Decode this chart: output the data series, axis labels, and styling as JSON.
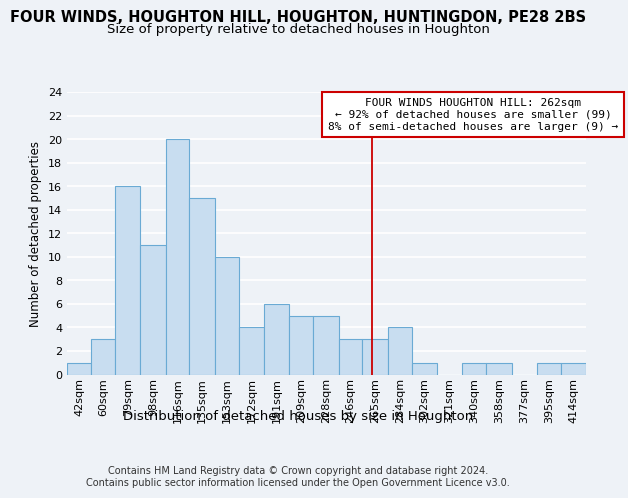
{
  "title": "FOUR WINDS, HOUGHTON HILL, HOUGHTON, HUNTINGDON, PE28 2BS",
  "subtitle": "Size of property relative to detached houses in Houghton",
  "xlabel": "Distribution of detached houses by size in Houghton",
  "ylabel": "Number of detached properties",
  "footer_line1": "Contains HM Land Registry data © Crown copyright and database right 2024.",
  "footer_line2": "Contains public sector information licensed under the Open Government Licence v3.0.",
  "bin_labels": [
    "42sqm",
    "60sqm",
    "79sqm",
    "98sqm",
    "116sqm",
    "135sqm",
    "153sqm",
    "172sqm",
    "191sqm",
    "209sqm",
    "228sqm",
    "246sqm",
    "265sqm",
    "284sqm",
    "302sqm",
    "321sqm",
    "340sqm",
    "358sqm",
    "377sqm",
    "395sqm",
    "414sqm"
  ],
  "bin_edges": [
    33,
    51,
    69,
    88,
    107,
    125,
    144,
    162,
    181,
    200,
    218,
    237,
    255,
    274,
    292,
    311,
    330,
    348,
    367,
    386,
    404,
    423
  ],
  "values": [
    1,
    3,
    16,
    11,
    20,
    15,
    10,
    4,
    6,
    5,
    5,
    3,
    3,
    4,
    1,
    0,
    1,
    1,
    0,
    1,
    1
  ],
  "bar_color": "#c8ddf0",
  "bar_edge_color": "#6aaad4",
  "property_line_x": 262,
  "property_line_color": "#cc0000",
  "annotation_line1": "FOUR WINDS HOUGHTON HILL: 262sqm",
  "annotation_line2": "← 92% of detached houses are smaller (99)",
  "annotation_line3": "8% of semi-detached houses are larger (9) →",
  "annotation_box_color": "#cc0000",
  "ylim": [
    0,
    24
  ],
  "yticks": [
    0,
    2,
    4,
    6,
    8,
    10,
    12,
    14,
    16,
    18,
    20,
    22,
    24
  ],
  "background_color": "#eef2f7",
  "plot_background_color": "#eef2f7",
  "grid_color": "#ffffff",
  "title_fontsize": 10.5,
  "subtitle_fontsize": 9.5,
  "xlabel_fontsize": 9.5,
  "ylabel_fontsize": 8.5,
  "tick_fontsize": 8,
  "annotation_fontsize": 8,
  "footer_fontsize": 7
}
